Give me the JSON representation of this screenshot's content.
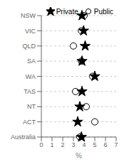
{
  "chart_data": {
    "type": "dot",
    "categories": [
      "NSW",
      "VIC",
      "QLD",
      "SA",
      "WA",
      "TAS",
      "NT",
      "ACT",
      "Australia"
    ],
    "series": [
      {
        "name": "Private",
        "color": "#000000",
        "marker": "star",
        "values": [
          3.8,
          3.95,
          4.1,
          3.8,
          5.0,
          3.8,
          3.6,
          3.4,
          3.75
        ]
      },
      {
        "name": "Public",
        "color": "#000000",
        "marker": "open_circle",
        "values": [
          4.0,
          3.75,
          3.0,
          3.75,
          4.8,
          3.2,
          4.2,
          5.0,
          3.6
        ]
      }
    ],
    "xlabel": "%",
    "xlim": [
      0,
      7
    ],
    "xticks": [
      0,
      1,
      2,
      3,
      4,
      5,
      6,
      7
    ],
    "grid": true,
    "legend": "upper right"
  }
}
